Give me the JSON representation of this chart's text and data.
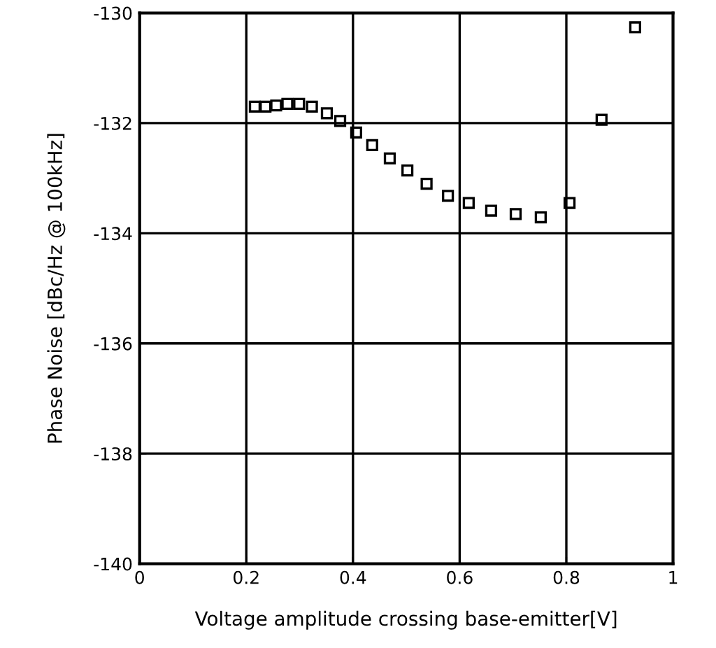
{
  "chart_data": {
    "type": "scatter",
    "xlabel": "Voltage amplitude crossing base-emitter[V]",
    "ylabel": "Phase Noise [dBc/Hz @ 100kHz]",
    "x": [
      0.216,
      0.236,
      0.256,
      0.277,
      0.299,
      0.323,
      0.351,
      0.376,
      0.406,
      0.436,
      0.469,
      0.502,
      0.538,
      0.578,
      0.617,
      0.659,
      0.705,
      0.752,
      0.806,
      0.866,
      0.929
    ],
    "series": [
      {
        "color": "#000000",
        "values": [
          -131.7,
          -131.7,
          -131.68,
          -131.65,
          -131.65,
          -131.7,
          -131.82,
          -131.96,
          -132.17,
          -132.4,
          -132.64,
          -132.86,
          -133.1,
          -133.32,
          -133.45,
          -133.59,
          -133.65,
          -133.71,
          -133.45,
          -131.94,
          -130.26
        ]
      }
    ],
    "xlim": [
      0,
      1
    ],
    "ylim": [
      -140,
      -130
    ],
    "xticks": [
      0,
      0.2,
      0.4,
      0.6,
      0.8,
      1
    ],
    "yticks": [
      -140,
      -138,
      -136,
      -134,
      -132,
      -130
    ],
    "grid": true,
    "marker": "square"
  }
}
